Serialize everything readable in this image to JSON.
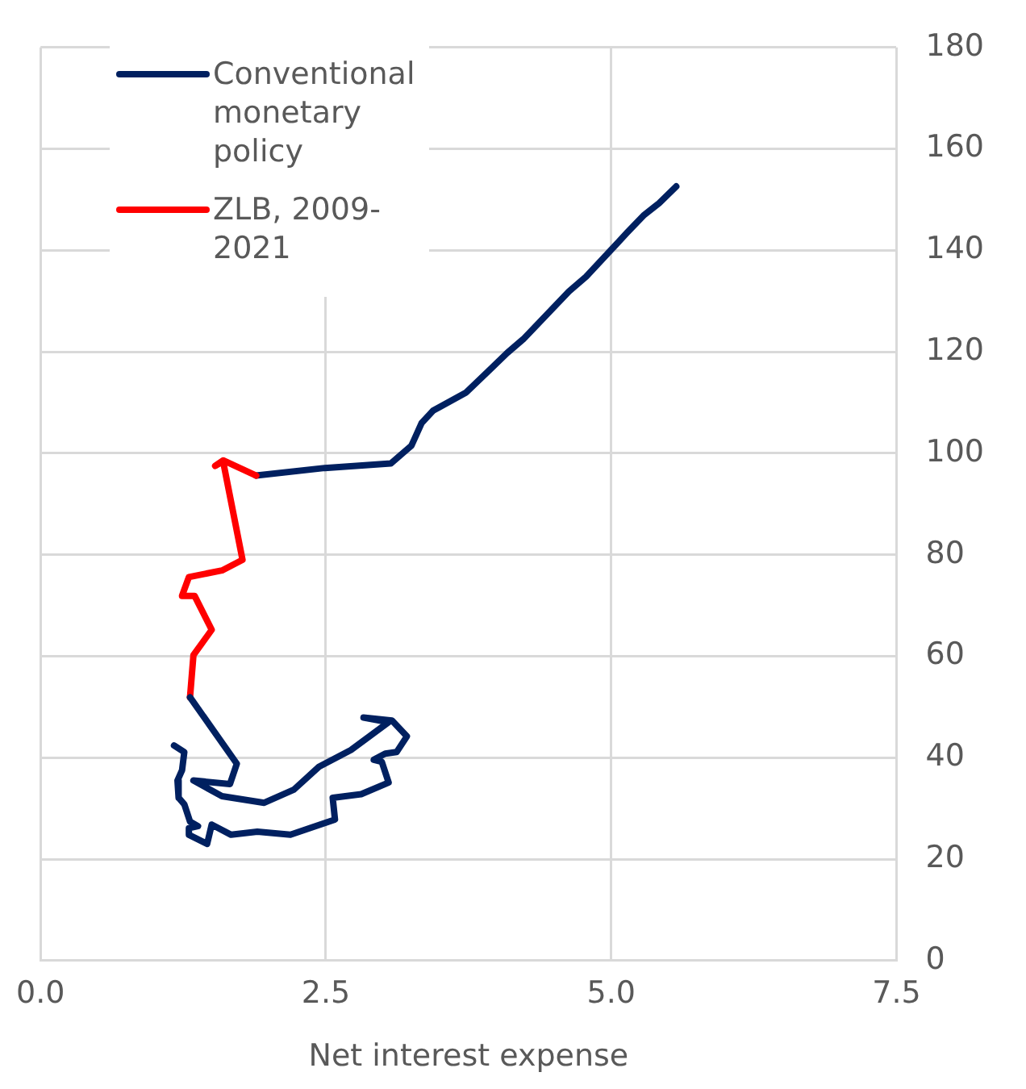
{
  "chart_data": {
    "type": "line",
    "xlabel": "Net interest expense",
    "xlim": [
      0,
      7.5
    ],
    "xticks": [
      {
        "value": 0,
        "label": "0.0"
      },
      {
        "value": 2.5,
        "label": "2.5"
      },
      {
        "value": 5,
        "label": "5.0"
      },
      {
        "value": 7.5,
        "label": "7.5"
      }
    ],
    "ylim": [
      0,
      180
    ],
    "yticks": [
      0,
      20,
      40,
      60,
      80,
      100,
      120,
      140,
      160,
      180
    ],
    "grid": true,
    "legend": "top left",
    "marker": "none",
    "line_style": "solid",
    "series": [
      {
        "name": "Conventional monetary policy",
        "color": "#002060",
        "x": [
          1.17,
          1.26,
          1.24,
          1.2,
          1.21,
          1.26,
          1.31,
          1.38,
          1.3,
          1.3,
          1.46,
          1.5,
          1.67,
          1.9,
          2.19,
          2.58,
          2.56,
          2.81,
          3.05,
          2.99,
          2.92,
          3.02,
          3.12,
          3.21,
          3.08,
          2.83,
          3.05,
          2.72,
          2.44,
          2.22,
          1.96,
          1.59,
          1.34,
          1.66,
          1.72,
          1.31
        ],
        "values": [
          42.4,
          41.1,
          37.5,
          35.5,
          32.1,
          30.8,
          27.4,
          26.5,
          26.1,
          24.8,
          23,
          26.8,
          24.8,
          25.4,
          24.8,
          27.8,
          32.1,
          32.8,
          35.1,
          39.2,
          39.6,
          40.8,
          41.1,
          44.2,
          47.3,
          47.9,
          47,
          41.5,
          38.2,
          33.7,
          31.1,
          32.4,
          35.5,
          34.8,
          38.8,
          51.9
        ]
      },
      {
        "name": "ZLB, 2009-2021",
        "color": "#ff0000",
        "x": [
          1.31,
          1.34,
          1.5,
          1.35,
          1.24,
          1.3,
          1.59,
          1.77,
          1.6,
          1.53,
          1.6,
          1.89
        ],
        "values": [
          51.9,
          60.2,
          65.2,
          71.9,
          71.9,
          75.6,
          76.9,
          79,
          98.4,
          97.5,
          98.6,
          95.6
        ]
      },
      {
        "color": "#002060",
        "x": [
          1.89,
          2.49,
          3.07,
          3.25,
          3.34,
          3.44,
          3.73,
          3.92,
          4.09,
          4.23,
          4.63,
          4.78,
          5.14,
          5.29,
          5.42,
          5.57
        ],
        "values": [
          95.6,
          97.1,
          98,
          101.5,
          106,
          108.4,
          112,
          116.1,
          119.8,
          122.5,
          131.9,
          134.8,
          143.5,
          147,
          149.3,
          152.6
        ]
      }
    ]
  }
}
